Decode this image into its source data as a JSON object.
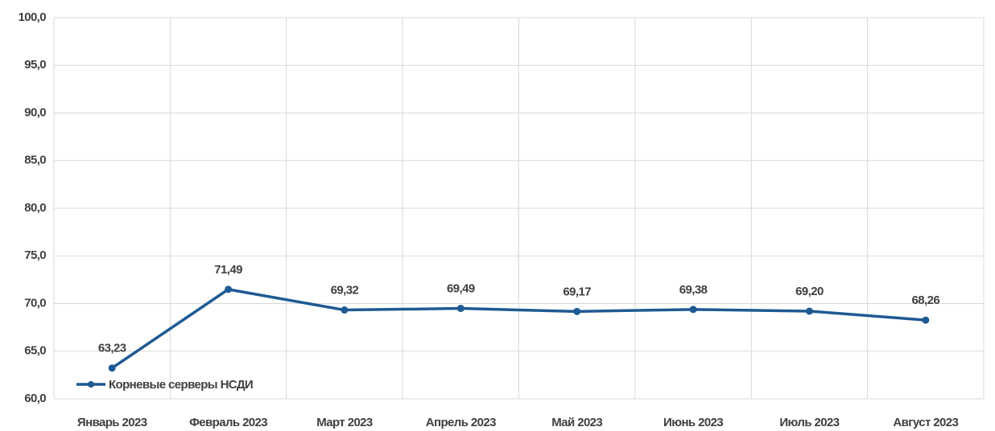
{
  "chart_data": {
    "type": "line",
    "categories": [
      "Январь 2023",
      "Февраль 2023",
      "Март 2023",
      "Апрель 2023",
      "Май 2023",
      "Июнь 2023",
      "Июль 2023",
      "Август 2023"
    ],
    "series": [
      {
        "name": "Корневые серверы НСДИ",
        "color": "#1f5a93",
        "values": [
          63.23,
          71.49,
          69.32,
          69.49,
          69.17,
          69.38,
          69.2,
          68.26
        ],
        "value_labels": [
          "63,23",
          "71,49",
          "69,32",
          "69,49",
          "69,17",
          "69,38",
          "69,20",
          "68,26"
        ]
      }
    ],
    "ylim": [
      60,
      100
    ],
    "yticks": [
      {
        "value": 60,
        "label": "60,0"
      },
      {
        "value": 65,
        "label": "65,0"
      },
      {
        "value": 70,
        "label": "70,0"
      },
      {
        "value": 75,
        "label": "75,0"
      },
      {
        "value": 80,
        "label": "80,0"
      },
      {
        "value": 85,
        "label": "85,0"
      },
      {
        "value": 90,
        "label": "90,0"
      },
      {
        "value": 95,
        "label": "95,0"
      },
      {
        "value": 100,
        "label": "100,0"
      }
    ],
    "grid": true,
    "legend": "lower left"
  }
}
